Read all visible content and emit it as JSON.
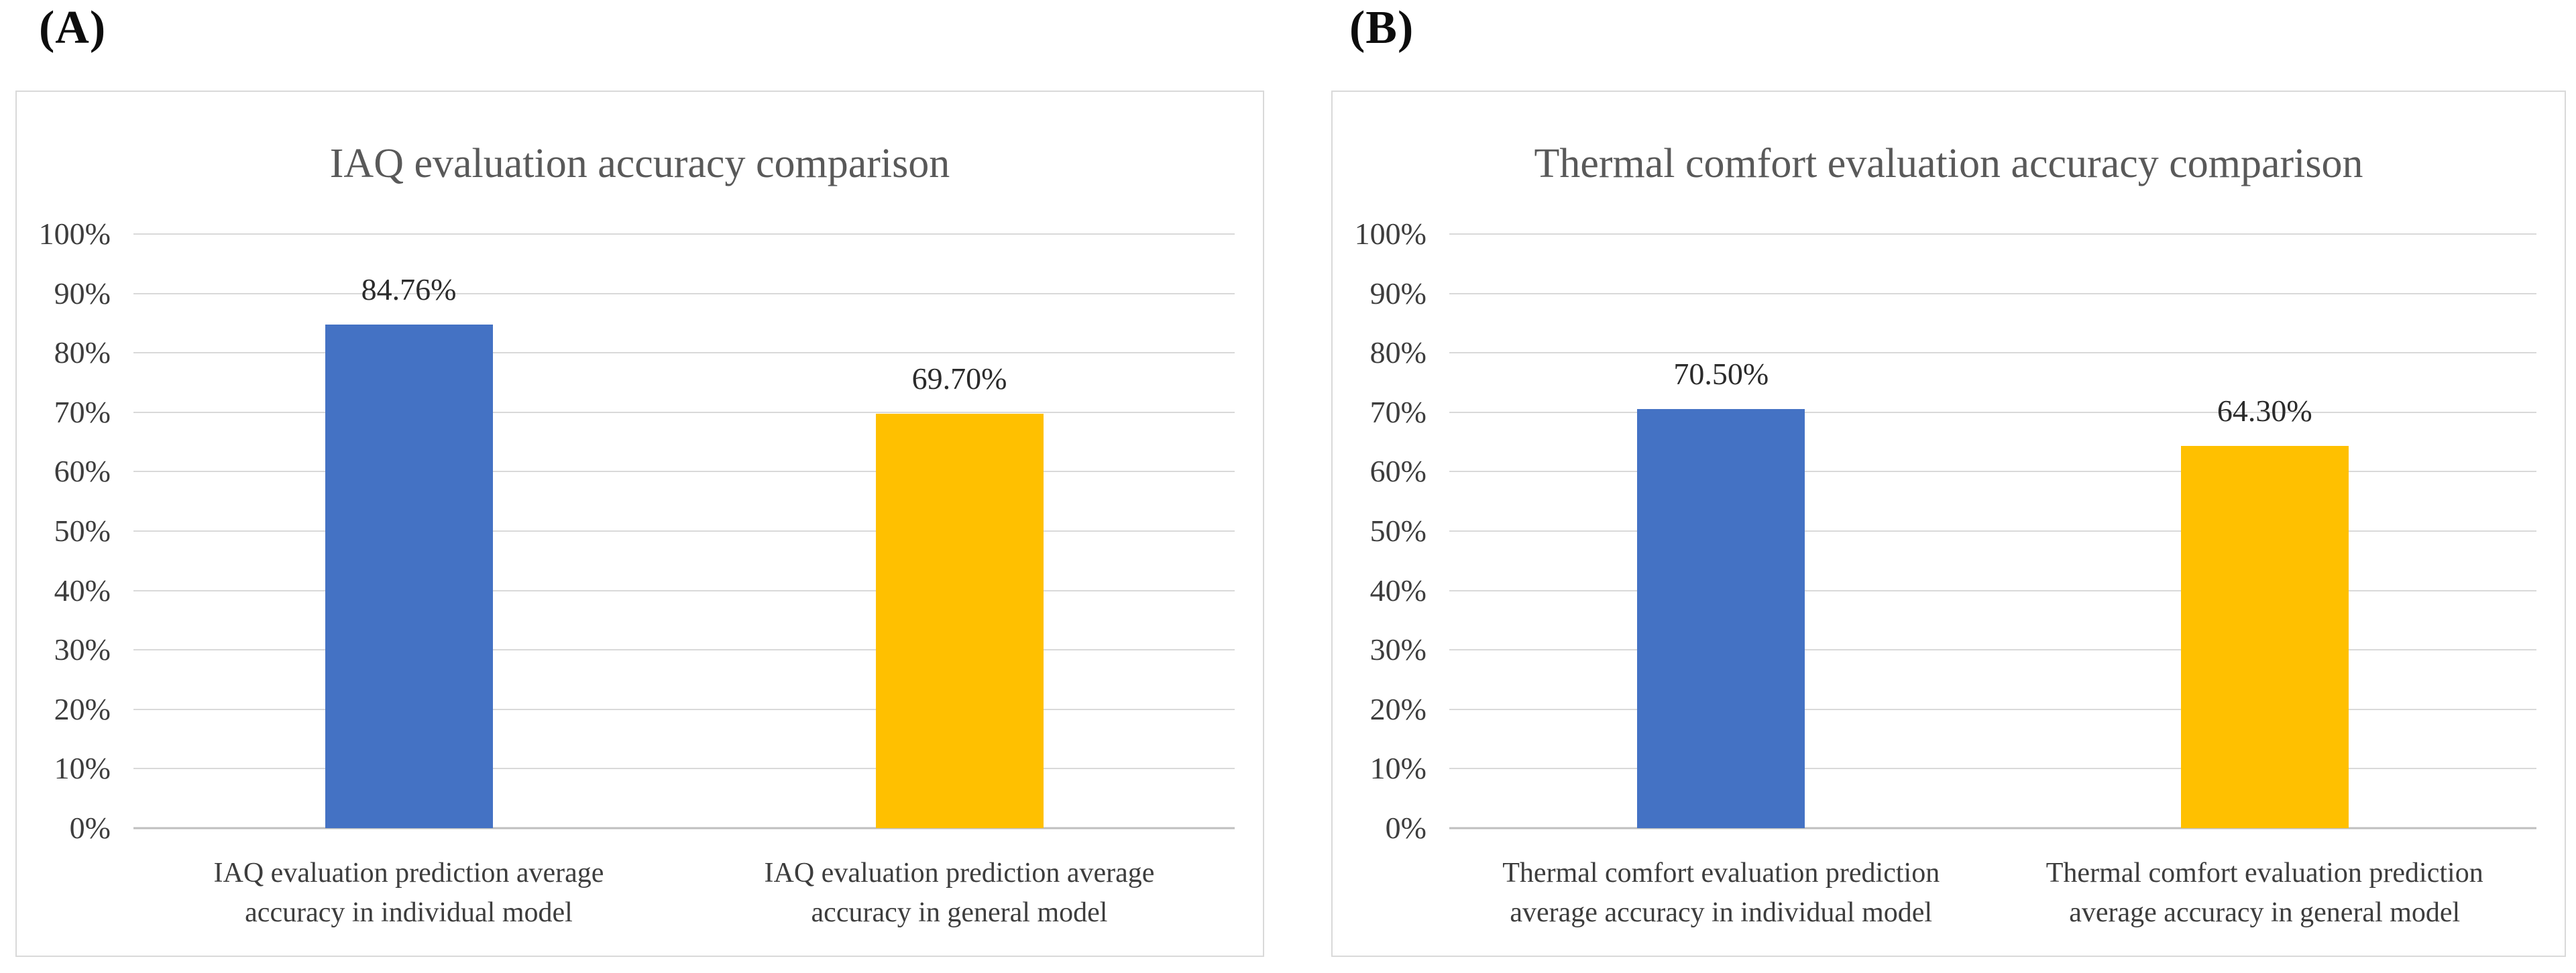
{
  "chart_data": [
    {
      "type": "bar",
      "panel_label": "(A)",
      "title": "IAQ evaluation accuracy comparison",
      "categories": [
        "IAQ evaluation prediction average accuracy in individual model",
        "IAQ evaluation prediction average accuracy in general model"
      ],
      "values": [
        84.76,
        69.7
      ],
      "value_labels": [
        "84.76%",
        "69.70%"
      ],
      "bar_colors": [
        "#4472C4",
        "#FFC000"
      ],
      "xlabel": "",
      "ylabel": "",
      "ylim": [
        0,
        100
      ],
      "yticks": [
        "0%",
        "10%",
        "20%",
        "30%",
        "40%",
        "50%",
        "60%",
        "70%",
        "80%",
        "90%",
        "100%"
      ],
      "grid": true,
      "gridline_color": "#D9D9D9",
      "axis_line_color": "#BFBFBF",
      "title_color": "#595959",
      "legend": "none"
    },
    {
      "type": "bar",
      "panel_label": "(B)",
      "title": "Thermal comfort evaluation accuracy comparison",
      "categories": [
        "Thermal comfort evaluation prediction average accuracy in individual model",
        "Thermal comfort evaluation prediction average accuracy in general model"
      ],
      "values": [
        70.5,
        64.3
      ],
      "value_labels": [
        "70.50%",
        "64.30%"
      ],
      "bar_colors": [
        "#4472C4",
        "#FFC000"
      ],
      "xlabel": "",
      "ylabel": "",
      "ylim": [
        0,
        100
      ],
      "yticks": [
        "0%",
        "10%",
        "20%",
        "30%",
        "40%",
        "50%",
        "60%",
        "70%",
        "80%",
        "90%",
        "100%"
      ],
      "grid": true,
      "gridline_color": "#D9D9D9",
      "axis_line_color": "#BFBFBF",
      "title_color": "#595959",
      "legend": "none"
    }
  ]
}
